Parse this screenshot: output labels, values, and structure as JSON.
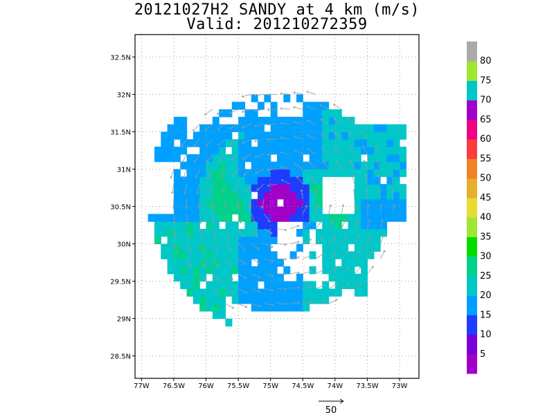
{
  "chart_data": {
    "type": "heatmap",
    "title": "20121027H2 SANDY at 4 km (m/s)",
    "subtitle": "Valid: 201210272359",
    "x_ticks": [
      "77W",
      "76.5W",
      "76W",
      "75.5W",
      "75W",
      "74.5W",
      "74W",
      "73.5W",
      "73W"
    ],
    "y_ticks": [
      "28.5N",
      "29N",
      "29.5N",
      "30N",
      "30.5N",
      "31N",
      "31.5N",
      "32N",
      "32.5N"
    ],
    "xlim": [
      -77.1,
      -72.7
    ],
    "ylim": [
      28.2,
      32.8
    ],
    "grid": true,
    "vector_reference": {
      "value": 50,
      "label": "50"
    },
    "colorbar": {
      "levels": [
        "5",
        "10",
        "15",
        "20",
        "25",
        "30",
        "35",
        "40",
        "45",
        "50",
        "55",
        "60",
        "65",
        "70",
        "75",
        "80"
      ],
      "colors": [
        "#a000c8",
        "#7800dc",
        "#1e3cff",
        "#00a0ff",
        "#00c8c8",
        "#00d28c",
        "#00dc00",
        "#a0e632",
        "#e6dc32",
        "#e6af2d",
        "#f08228",
        "#fa3c3c",
        "#f00082",
        "#a000c8",
        "#00c8c8",
        "#a0e632",
        "#aaaaaa"
      ]
    },
    "region_colors": {
      "outer": "#00a0ff",
      "band": "#00c8c8",
      "band_strong": "#00d28c",
      "eye_wall": "#1e3cff",
      "eye": "#a000c8",
      "dark": "#7800dc",
      "vector": "#999999"
    }
  }
}
